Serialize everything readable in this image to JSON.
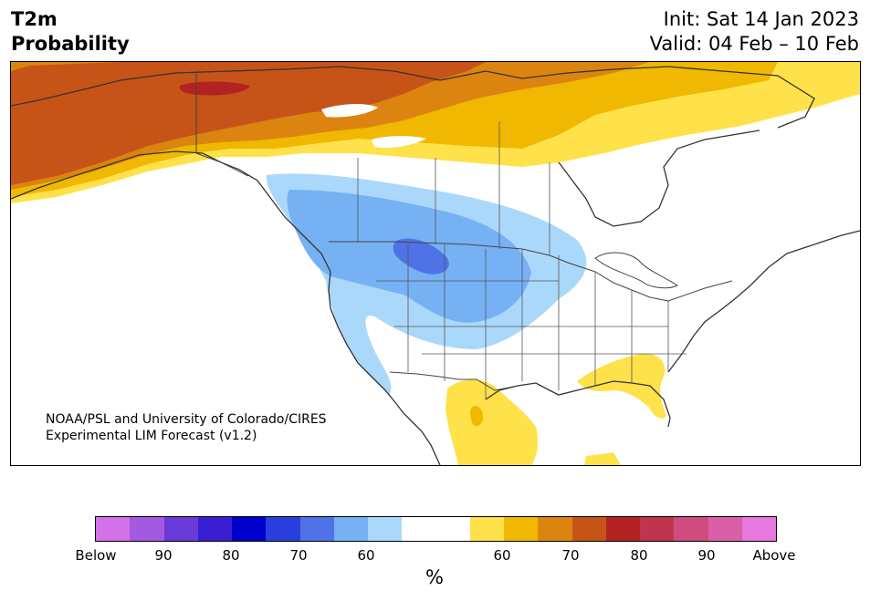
{
  "header": {
    "title_line1": "T2m",
    "title_line2": "Probability",
    "init": "Init: Sat 14 Jan 2023",
    "valid": "Valid: 04 Feb – 10 Feb"
  },
  "map": {
    "credit_line1": "NOAA/PSL and University of Colorado/CIRES",
    "credit_line2": "Experimental LIM Forecast (v1.2)",
    "colors": {
      "below_60": "#aad8fb",
      "below_70": "#76b1f3",
      "below_80": "#4f73e6",
      "above_60": "#ffe14a",
      "above_70": "#f0b800",
      "above_80": "#dc8410",
      "above_90": "#c65418",
      "above_95": "#b32222",
      "land": "#ffffff",
      "coast": "#333333"
    }
  },
  "colorbar": {
    "colors": [
      "#d372e8",
      "#a15ae0",
      "#6a3ad8",
      "#3a1fd2",
      "#0000cc",
      "#2a3edd",
      "#4f73e6",
      "#76b1f3",
      "#aad8fb",
      "#ffffff",
      "#ffffff",
      "#ffe14a",
      "#f0b800",
      "#dc8410",
      "#c65418",
      "#b32222",
      "#c0344e",
      "#cf4c7e",
      "#da5fa8",
      "#e877de"
    ],
    "ticks": [
      "Below",
      "90",
      "80",
      "70",
      "60",
      "60",
      "70",
      "80",
      "90",
      "Above"
    ],
    "unit": "%"
  }
}
